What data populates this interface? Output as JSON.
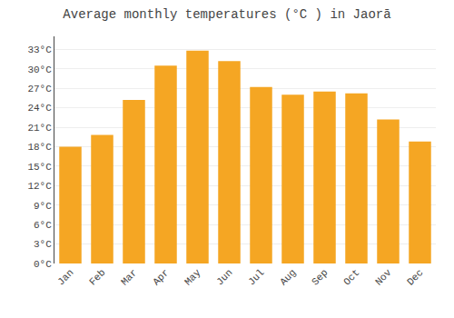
{
  "chart_data": {
    "type": "bar",
    "title": "Average monthly temperatures (°C ) in Jaorā",
    "categories": [
      "Jan",
      "Feb",
      "Mar",
      "Apr",
      "May",
      "Jun",
      "Jul",
      "Aug",
      "Sep",
      "Oct",
      "Nov",
      "Dec"
    ],
    "values": [
      18.0,
      19.8,
      25.2,
      30.5,
      32.8,
      31.2,
      27.2,
      26.0,
      26.5,
      26.2,
      22.2,
      18.8
    ],
    "color": "#F5A623",
    "ylim": [
      0,
      35
    ],
    "yticks": [
      {
        "value": 0,
        "label": "0°C"
      },
      {
        "value": 3,
        "label": "3°C"
      },
      {
        "value": 6,
        "label": "6°C"
      },
      {
        "value": 9,
        "label": "9°C"
      },
      {
        "value": 12,
        "label": "12°C"
      },
      {
        "value": 15,
        "label": "15°C"
      },
      {
        "value": 18,
        "label": "18°C"
      },
      {
        "value": 21,
        "label": "21°C"
      },
      {
        "value": 24,
        "label": "24°C"
      },
      {
        "value": 27,
        "label": "27°C"
      },
      {
        "value": 30,
        "label": "30°C"
      },
      {
        "value": 33,
        "label": "33°C"
      }
    ],
    "grid": true
  }
}
